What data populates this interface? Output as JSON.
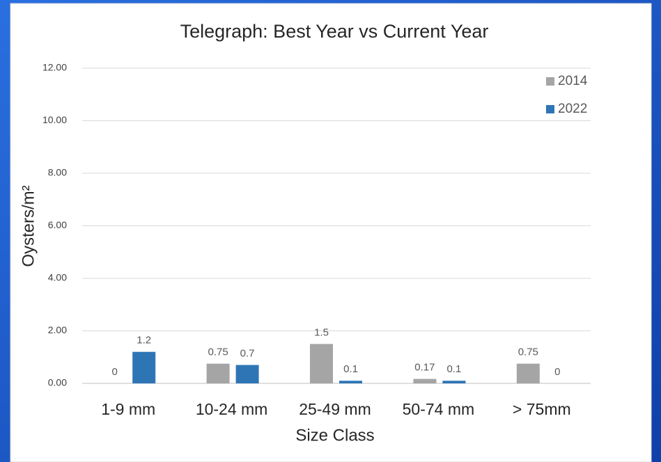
{
  "chart_data": {
    "type": "bar",
    "title": "Telegraph: Best Year vs Current Year",
    "xlabel": "Size Class",
    "ylabel": "Oysters/m²",
    "categories": [
      "1-9 mm",
      "10-24 mm",
      "25-49 mm",
      "50-74 mm",
      "> 75mm"
    ],
    "series": [
      {
        "name": "2014",
        "color": "#a5a5a5",
        "values": [
          0,
          0.75,
          1.5,
          0.17,
          0.75
        ]
      },
      {
        "name": "2022",
        "color": "#2e75b6",
        "values": [
          1.2,
          0.7,
          0.1,
          0.1,
          0
        ]
      }
    ],
    "ylim": [
      0,
      12
    ],
    "yticks": [
      {
        "value": 0,
        "label": "0.00"
      },
      {
        "value": 2,
        "label": "2.00"
      },
      {
        "value": 4,
        "label": "4.00"
      },
      {
        "value": 6,
        "label": "6.00"
      },
      {
        "value": 8,
        "label": "8.00"
      },
      {
        "value": 10,
        "label": "10.00"
      },
      {
        "value": 12,
        "label": "12.00"
      }
    ],
    "grid": true,
    "legend": "top-right"
  }
}
